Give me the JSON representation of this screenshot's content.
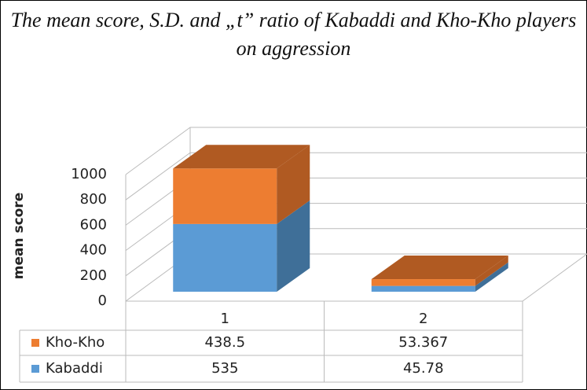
{
  "chart_data": {
    "type": "bar3d_stacked",
    "title": "The mean score, S.D. and „t” ratio of Kabaddi and Kho-Kho players on aggression",
    "y_axis_label": "mean score",
    "categories": [
      "1",
      "2"
    ],
    "series": [
      {
        "name": "Kabaddi",
        "color": "#5b9bd5",
        "side_color": "#3f6f98",
        "values": [
          535,
          45.78
        ]
      },
      {
        "name": "Kho-Kho",
        "color": "#ed7d31",
        "side_color": "#b05a22",
        "values": [
          438.5,
          53.367
        ]
      }
    ],
    "ylim": [
      0,
      1000
    ],
    "yticks": [
      0,
      200,
      400,
      600,
      800,
      1000
    ],
    "grid": true,
    "data_table": true
  }
}
